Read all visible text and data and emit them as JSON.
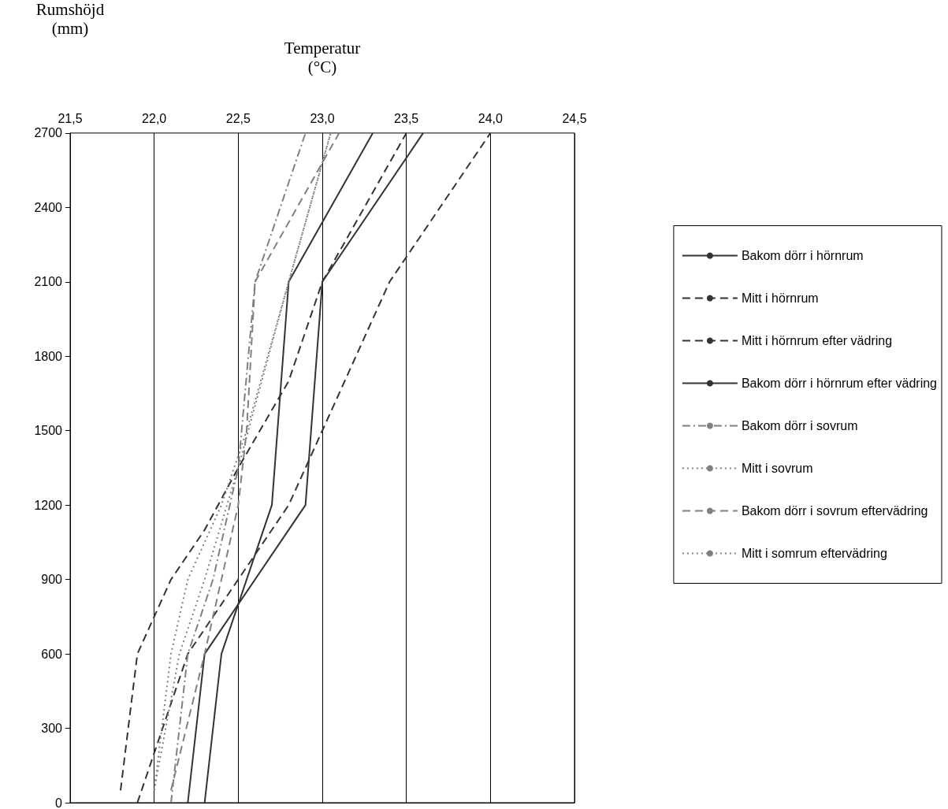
{
  "chart_data": {
    "type": "line",
    "xlabel": "Temperatur\n(°C)",
    "ylabel": "Rumshöjd\n(mm)",
    "xlim": [
      21.5,
      24.5
    ],
    "xticks": [
      {
        "value": 21.5,
        "label": "21,5"
      },
      {
        "value": 22.0,
        "label": "22,0"
      },
      {
        "value": 22.5,
        "label": "22,5"
      },
      {
        "value": 23.0,
        "label": "23,0"
      },
      {
        "value": 23.5,
        "label": "23,5"
      },
      {
        "value": 24.0,
        "label": "24,0"
      },
      {
        "value": 24.5,
        "label": "24,5"
      }
    ],
    "ylim": [
      0,
      2700
    ],
    "yticks": [
      0,
      300,
      600,
      900,
      1200,
      1500,
      1800,
      2100,
      2400,
      2700
    ],
    "grid": "x",
    "legend": "right",
    "marker": "none",
    "series": [
      {
        "name": "Bakom dörr i hörnrum",
        "color": "#333333",
        "line_style": "solid",
        "x": [
          22.2,
          22.3,
          22.9,
          23.0,
          23.6
        ],
        "values": [
          0,
          600,
          1200,
          2100,
          2700
        ]
      },
      {
        "name": "Mitt i hörnrum",
        "color": "#333333",
        "line_style": "dashed",
        "x": [
          21.9,
          22.2,
          22.8,
          23.0,
          23.4,
          24.0
        ],
        "values": [
          0,
          600,
          1200,
          1500,
          2100,
          2700
        ]
      },
      {
        "name": "Mitt i hörnrum efter vädring",
        "color": "#333333",
        "line_style": "dashed",
        "x": [
          21.8,
          21.9,
          22.0,
          22.1,
          22.3,
          22.5,
          22.8,
          23.0,
          23.5
        ],
        "values": [
          50,
          600,
          750,
          900,
          1100,
          1350,
          1700,
          2100,
          2700
        ]
      },
      {
        "name": "Bakom dörr i hörnrum efter vädring",
        "color": "#333333",
        "line_style": "solid",
        "x": [
          22.3,
          22.4,
          22.7,
          22.8,
          23.3
        ],
        "values": [
          0,
          600,
          1200,
          2100,
          2700
        ]
      },
      {
        "name": "Bakom dörr i sovrum",
        "color": "#808080",
        "line_style": "dashdot",
        "x": [
          22.1,
          22.2,
          22.35,
          22.5,
          22.6,
          22.9
        ],
        "values": [
          0,
          600,
          900,
          1350,
          2100,
          2700
        ]
      },
      {
        "name": "Mitt i sovrum",
        "color": "#808080",
        "line_style": "dotted",
        "x": [
          22.0,
          22.15,
          22.3,
          22.5,
          22.8,
          23.05
        ],
        "values": [
          50,
          600,
          900,
          1350,
          2100,
          2700
        ]
      },
      {
        "name": "Bakom dörr i sovrum eftervädring",
        "color": "#808080",
        "line_style": "dashed",
        "x": [
          22.1,
          22.3,
          22.4,
          22.5,
          22.55,
          22.6,
          23.1
        ],
        "values": [
          50,
          600,
          900,
          1200,
          1500,
          2100,
          2700
        ]
      },
      {
        "name": "Mitt i somrum eftervädring",
        "color": "#808080",
        "line_style": "dotted",
        "x": [
          22.0,
          22.1,
          22.2,
          22.4,
          22.55,
          22.8,
          23.05
        ],
        "values": [
          50,
          600,
          900,
          1200,
          1500,
          2100,
          2700
        ]
      }
    ]
  }
}
